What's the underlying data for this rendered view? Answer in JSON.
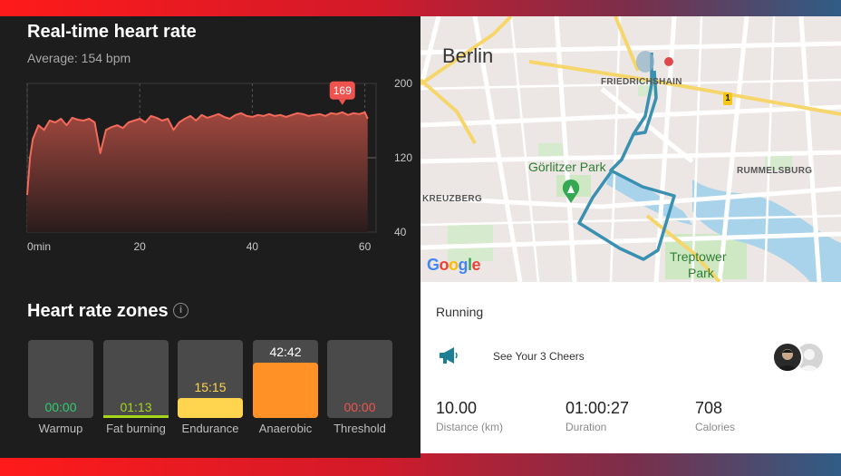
{
  "heart_rate": {
    "title": "Real-time heart rate",
    "average": "Average: 154 bpm",
    "peak_label": "169",
    "colors": {
      "line": "#f46a5a",
      "fill_top": "#a0483e",
      "fill_bottom": "#2a1c1c",
      "badge": "#ef5350"
    },
    "chart_data": {
      "type": "area",
      "x": [
        0,
        0.5,
        1,
        2,
        3,
        4,
        5,
        6,
        7,
        8,
        9,
        10,
        11,
        12,
        13,
        14,
        15,
        16,
        17,
        18,
        19,
        20,
        21,
        22,
        23,
        24,
        25,
        26,
        27,
        28,
        29,
        30,
        31,
        32,
        33,
        34,
        35,
        36,
        37,
        38,
        39,
        40,
        41,
        42,
        43,
        44,
        45,
        46,
        47,
        48,
        49,
        50,
        51,
        52,
        53,
        54,
        55,
        56,
        57,
        58,
        59,
        60,
        60.5
      ],
      "values": [
        80,
        120,
        140,
        155,
        150,
        160,
        158,
        162,
        155,
        163,
        161,
        160,
        162,
        158,
        125,
        150,
        153,
        155,
        152,
        158,
        160,
        162,
        158,
        165,
        163,
        160,
        162,
        150,
        158,
        162,
        165,
        160,
        166,
        163,
        165,
        167,
        164,
        162,
        166,
        168,
        165,
        164,
        166,
        165,
        167,
        165,
        166,
        164,
        166,
        168,
        167,
        165,
        166,
        167,
        165,
        168,
        167,
        169,
        166,
        168,
        167,
        169,
        162
      ],
      "x_ticks": [
        "0min",
        "20",
        "40",
        "60"
      ],
      "x_tick_values": [
        0,
        20,
        40,
        60
      ],
      "y_ticks": [
        "200",
        "120",
        "40"
      ],
      "y_tick_values": [
        200,
        120,
        40
      ],
      "xlim": [
        0,
        62
      ],
      "ylim": [
        40,
        200
      ]
    }
  },
  "zones": {
    "title": "Heart rate zones",
    "info_icon": "info-icon",
    "items": [
      {
        "label": "Warmup",
        "value": "00:00",
        "fraction": 0.0,
        "color": "#2ecc71",
        "fill": ""
      },
      {
        "label": "Fat burning",
        "value": "01:13",
        "fraction": 0.02,
        "color": "#a5d61a",
        "fill": "#a5d61a"
      },
      {
        "label": "Endurance",
        "value": "15:15",
        "fraction": 0.25,
        "color": "#ffd54f",
        "fill": "#ffd54f"
      },
      {
        "label": "Anaerobic",
        "value": "42:42",
        "fraction": 0.71,
        "color": "#ffa726",
        "fill": "#ff9126"
      },
      {
        "label": "Threshold",
        "value": "00:00",
        "fraction": 0.0,
        "color": "#ef5350",
        "fill": ""
      }
    ]
  },
  "map": {
    "city": "Berlin",
    "districts": [
      "FRIEDRICHSHAIN",
      "RUMMELSBURG",
      "KREUZBERG"
    ],
    "parks": [
      "Görlitzer Park",
      "Treptower",
      "Park"
    ],
    "road_badge": "1",
    "provider": "Google"
  },
  "activity": {
    "type": "Running",
    "cheers": "See Your 3 Cheers",
    "megaphone_icon": "megaphone-icon",
    "stats": [
      {
        "value": "10.00",
        "label": "Distance (km)"
      },
      {
        "value": "01:00:27",
        "label": "Duration"
      },
      {
        "value": "708",
        "label": "Calories"
      }
    ]
  }
}
